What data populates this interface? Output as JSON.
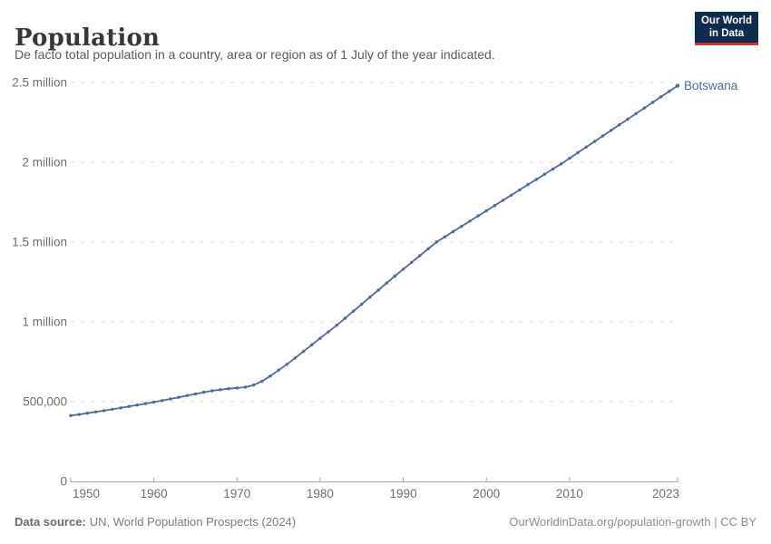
{
  "header": {
    "title": "Population",
    "subtitle": "De facto total population in a country, area or region as of 1 July of the year indicated."
  },
  "logo": {
    "line1": "Our World",
    "line2": "in Data",
    "bg_color": "#0d2c4e",
    "accent_color": "#d0352c"
  },
  "chart_data": {
    "type": "line",
    "title": "Population",
    "grid": "horizontal-dashed",
    "grid_color": "#d9d9d9",
    "axis_color": "#a3a3a3",
    "tick_label_color": "#6e6e6e",
    "xlim": [
      1950,
      2023
    ],
    "ylim": [
      0,
      2500000
    ],
    "x_ticks": [
      {
        "value": 1950,
        "label": "1950"
      },
      {
        "value": 1960,
        "label": "1960"
      },
      {
        "value": 1970,
        "label": "1970"
      },
      {
        "value": 1980,
        "label": "1980"
      },
      {
        "value": 1990,
        "label": "1990"
      },
      {
        "value": 2000,
        "label": "2000"
      },
      {
        "value": 2010,
        "label": "2010"
      },
      {
        "value": 2023,
        "label": "2023"
      }
    ],
    "y_ticks": [
      {
        "value": 0,
        "label": "0"
      },
      {
        "value": 500000,
        "label": "500,000"
      },
      {
        "value": 1000000,
        "label": "1 million"
      },
      {
        "value": 1500000,
        "label": "1.5 million"
      },
      {
        "value": 2000000,
        "label": "2 million"
      },
      {
        "value": 2500000,
        "label": "2.5 million"
      }
    ],
    "series": [
      {
        "name": "Botswana",
        "color": "#4C6A9C",
        "x": [
          1950,
          1951,
          1952,
          1953,
          1954,
          1955,
          1956,
          1957,
          1958,
          1959,
          1960,
          1961,
          1962,
          1963,
          1964,
          1965,
          1966,
          1967,
          1968,
          1969,
          1970,
          1971,
          1972,
          1973,
          1974,
          1975,
          1976,
          1977,
          1978,
          1979,
          1980,
          1981,
          1982,
          1983,
          1984,
          1985,
          1986,
          1987,
          1988,
          1989,
          1990,
          1991,
          1992,
          1993,
          1994,
          1995,
          1996,
          1997,
          1998,
          1999,
          2000,
          2001,
          2002,
          2003,
          2004,
          2005,
          2006,
          2007,
          2008,
          2009,
          2010,
          2011,
          2012,
          2013,
          2014,
          2015,
          2016,
          2017,
          2018,
          2019,
          2020,
          2021,
          2022,
          2023
        ],
        "values": [
          413000,
          420000,
          428000,
          436000,
          444000,
          452000,
          461000,
          470000,
          479000,
          488000,
          497000,
          507000,
          517000,
          527000,
          538000,
          548000,
          559000,
          568000,
          575000,
          581000,
          586000,
          591000,
          604000,
          628000,
          660000,
          697000,
          734000,
          774000,
          815000,
          856000,
          897000,
          938000,
          979000,
          1023000,
          1067000,
          1111000,
          1155000,
          1199000,
          1243000,
          1287000,
          1330000,
          1373000,
          1415000,
          1458000,
          1500000,
          1533000,
          1566000,
          1598000,
          1631000,
          1664000,
          1696000,
          1729000,
          1762000,
          1794000,
          1827000,
          1860000,
          1892000,
          1925000,
          1958000,
          1990000,
          2025000,
          2060000,
          2095000,
          2130000,
          2165000,
          2200000,
          2235000,
          2270000,
          2305000,
          2340000,
          2375000,
          2410000,
          2445000,
          2480000
        ]
      }
    ],
    "end_label": "Botswana"
  },
  "footer": {
    "source_label": "Data source:",
    "source_value": "UN, World Population Prospects (2024)",
    "right_text": "OurWorldinData.org/population-growth | CC BY"
  }
}
